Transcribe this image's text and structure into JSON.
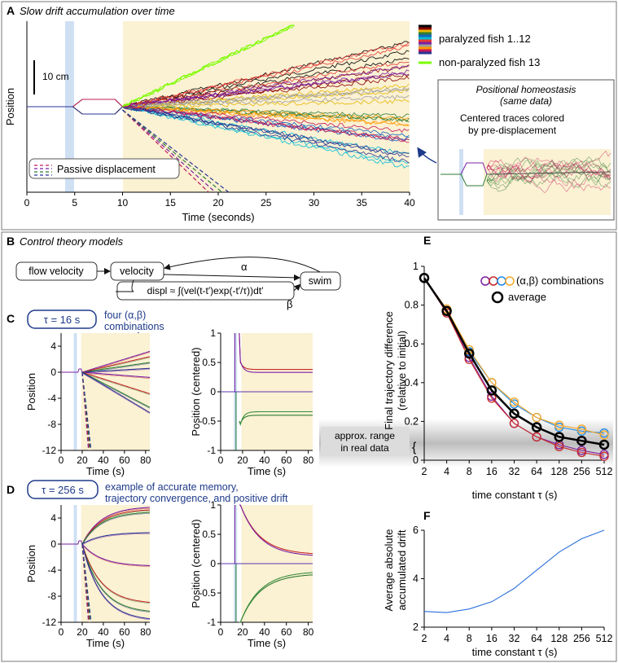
{
  "panels": {
    "A": {
      "letter": "A",
      "title": "Slow drift accumulation over time"
    },
    "B": {
      "letter": "B",
      "title": "Control theory models"
    },
    "C": {
      "letter": "C",
      "tau": "τ = 16 s",
      "note1": "four (α,β)",
      "note2": "combinations"
    },
    "D": {
      "letter": "D",
      "tau": "τ = 256 s",
      "note1": "example of accurate memory,",
      "note2": "trajectory convergence, and positive drift"
    },
    "E": {
      "letter": "E"
    },
    "F": {
      "letter": "F"
    }
  },
  "panelA": {
    "ylabel": "Position",
    "xlabel": "Time (seconds)",
    "xticks": [
      "0",
      "5",
      "10",
      "15",
      "20",
      "25",
      "30",
      "35",
      "40"
    ],
    "scalebar": "10 cm",
    "legend_passive": "Passive displacement",
    "legend_paralyzed": "paralyzed fish 1..12",
    "legend_nonparalyzed": "non-paralyzed fish 13",
    "inset_title1": "Positional homeostasis",
    "inset_title2": "(same data)",
    "inset_text1": "Centered traces colored",
    "inset_text2": "by pre-displacement",
    "fish_colors": [
      "#000000",
      "#8b0000",
      "#e6b800",
      "#2e7d32",
      "#1565c0",
      "#00bcd4",
      "#e53935",
      "#7b1fa2",
      "#9e9e9e",
      "#ff9800",
      "#c2185b",
      "#283593"
    ],
    "nonparalyzed_color": "#7cfc00"
  },
  "diagram": {
    "flow_velocity": "flow velocity",
    "velocity": "velocity",
    "displ": "displ ≈ ∫(vel(t-t′)exp(-t′/τ))dt′",
    "swim": "swim",
    "alpha": "α",
    "beta": "β"
  },
  "panelC": {
    "left_ylabel": "Position",
    "right_ylabel": "Position (centered)",
    "xlabel": "Time (s)",
    "left_yticks": [
      "4",
      "0",
      "-4",
      "-8",
      "-12"
    ],
    "right_yticks": [
      "1",
      "0.5",
      "0",
      "-0.5",
      "-1"
    ],
    "xticks": [
      "0",
      "20",
      "40",
      "60",
      "80"
    ]
  },
  "panelD": {
    "left_ylabel": "Position",
    "right_ylabel": "Position (centered)",
    "xlabel": "Time (s)",
    "left_yticks": [
      "4",
      "0",
      "-4",
      "-8",
      "-12"
    ],
    "right_yticks": [
      "1",
      "0.5",
      "0",
      "-0.5",
      "-1"
    ],
    "xticks": [
      "0",
      "20",
      "40",
      "60",
      "80"
    ]
  },
  "panelE": {
    "ylabel1": "Final trajectory difference",
    "ylabel2": "(relative to initial)",
    "xlabel": "time constant τ (s)",
    "legend_combos": "(α,β) combinations",
    "legend_average": "average",
    "range_label1": "approx. range",
    "range_label2": "in real data"
  },
  "panelF": {
    "ylabel1": "Average absolute",
    "ylabel2": "accumulated drift",
    "xlabel": "time constant τ (s)"
  },
  "chart_data": [
    {
      "id": "E",
      "type": "line",
      "x": [
        "2",
        "4",
        "8",
        "16",
        "32",
        "64",
        "128",
        "256",
        "512"
      ],
      "xticks": [
        "2",
        "4",
        "8",
        "16",
        "32",
        "64",
        "128",
        "256",
        "512"
      ],
      "yticks": [
        "0",
        "0.2",
        "0.4",
        "0.6",
        "0.8",
        "1"
      ],
      "ylim": [
        0,
        1
      ],
      "series": [
        {
          "color": "#7b1fa2",
          "values": [
            0.94,
            0.76,
            0.53,
            0.33,
            0.19,
            0.12,
            0.08,
            0.05,
            0.03
          ]
        },
        {
          "color": "#c62828",
          "values": [
            0.94,
            0.76,
            0.52,
            0.32,
            0.19,
            0.12,
            0.07,
            0.04,
            0.02
          ]
        },
        {
          "color": "#1e88e5",
          "values": [
            0.94,
            0.77,
            0.56,
            0.4,
            0.29,
            0.22,
            0.17,
            0.15,
            0.14
          ]
        },
        {
          "color": "#f9a825",
          "values": [
            0.94,
            0.78,
            0.57,
            0.4,
            0.3,
            0.22,
            0.18,
            0.16,
            0.13
          ]
        },
        {
          "name": "average",
          "color": "#000000",
          "values": [
            0.94,
            0.77,
            0.55,
            0.36,
            0.24,
            0.17,
            0.12,
            0.1,
            0.08
          ]
        }
      ],
      "shaded_range": [
        0.02,
        0.18
      ]
    },
    {
      "id": "F",
      "type": "line",
      "x": [
        "2",
        "4",
        "8",
        "16",
        "32",
        "64",
        "128",
        "256",
        "512"
      ],
      "xticks": [
        "2",
        "4",
        "8",
        "16",
        "32",
        "64",
        "128",
        "256",
        "512"
      ],
      "yticks": [
        "2",
        "4",
        "6"
      ],
      "ylim": [
        2,
        6
      ],
      "series": [
        {
          "color": "#2a6fdb",
          "values": [
            2.65,
            2.6,
            2.75,
            3.05,
            3.6,
            4.35,
            5.1,
            5.65,
            6.0
          ]
        }
      ]
    }
  ]
}
